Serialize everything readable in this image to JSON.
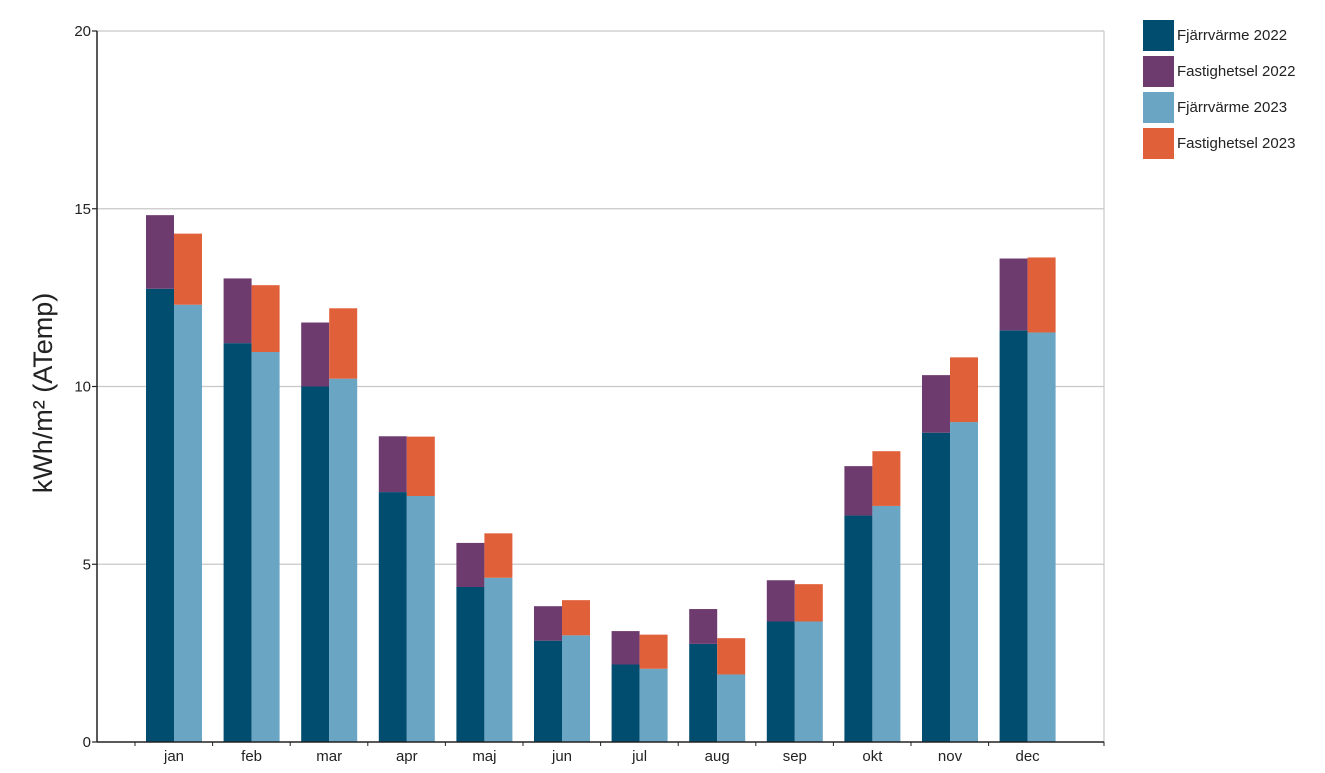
{
  "chart_data": {
    "type": "bar",
    "stacked": true,
    "grouped": true,
    "categories": [
      "jan",
      "feb",
      "mar",
      "apr",
      "maj",
      "jun",
      "jul",
      "aug",
      "sep",
      "okt",
      "nov",
      "dec"
    ],
    "ylabel": "kWh/m² (ATemp)",
    "ylim": [
      0,
      20
    ],
    "yticks": [
      "0",
      "5",
      "10",
      "15",
      "20"
    ],
    "grid": true,
    "legend_position": "top-right, outside plot",
    "groups": [
      {
        "year": "2022",
        "stack": [
          {
            "name": "Fjärrvärme 2022",
            "color": "#004d70",
            "values": [
              12.75,
              11.22,
              10.0,
              7.03,
              4.36,
              2.85,
              2.18,
              2.76,
              3.39,
              6.37,
              8.7,
              11.58
            ]
          },
          {
            "name": "Fastighetsel 2022",
            "color": "#6e3b6f",
            "values": [
              2.07,
              1.82,
              1.8,
              1.57,
              1.24,
              0.97,
              0.94,
              0.98,
              1.16,
              1.39,
              1.62,
              2.02
            ]
          }
        ]
      },
      {
        "year": "2023",
        "stack": [
          {
            "name": "Fjärrvärme 2023",
            "color": "#6aa5c3",
            "values": [
              12.3,
              10.97,
              10.22,
              6.92,
              4.62,
              3.0,
              2.06,
              1.9,
              3.39,
              6.64,
              9.0,
              11.52
            ]
          },
          {
            "name": "Fastighetsel 2023",
            "color": "#e0603a",
            "values": [
              2.0,
              1.88,
              1.98,
              1.67,
              1.25,
              0.99,
              0.96,
              1.02,
              1.05,
              1.54,
              1.82,
              2.11
            ]
          }
        ]
      }
    ]
  }
}
